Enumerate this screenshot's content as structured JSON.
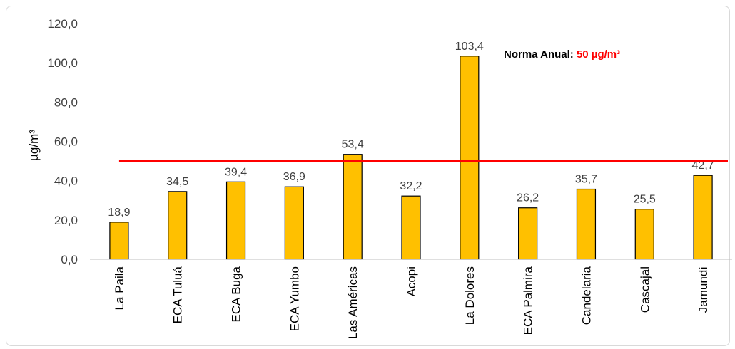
{
  "chart_data": {
    "type": "bar",
    "categories": [
      "La Paila",
      "ECA Tuluá",
      "ECA Buga",
      "ECA Yumbo",
      "Las Américas",
      "Acopi",
      "La Dolores",
      "ECA Palmira",
      "Candelaria",
      "Cascajal",
      "Jamundí"
    ],
    "values": [
      18.9,
      34.5,
      39.4,
      36.9,
      53.4,
      32.2,
      103.4,
      26.2,
      35.7,
      25.5,
      42.7
    ],
    "data_labels": [
      "18,9",
      "34,5",
      "39,4",
      "36,9",
      "53,4",
      "32,2",
      "103,4",
      "26,2",
      "35,7",
      "25,5",
      "42,7"
    ],
    "ylabel": "µg/m³",
    "ylim": [
      0,
      120
    ],
    "yticks": [
      "0,0",
      "20,0",
      "40,0",
      "60,0",
      "80,0",
      "100,0",
      "120,0"
    ],
    "bar_color": "#FFC000",
    "bar_border": "#000000",
    "grid": false,
    "reference_line": {
      "value": 50,
      "color": "#FF0000"
    },
    "annotation": {
      "label": "Norma Anual: ",
      "value_text": "50 µg/m³",
      "label_color": "#000000",
      "value_color": "#FF0000"
    }
  }
}
